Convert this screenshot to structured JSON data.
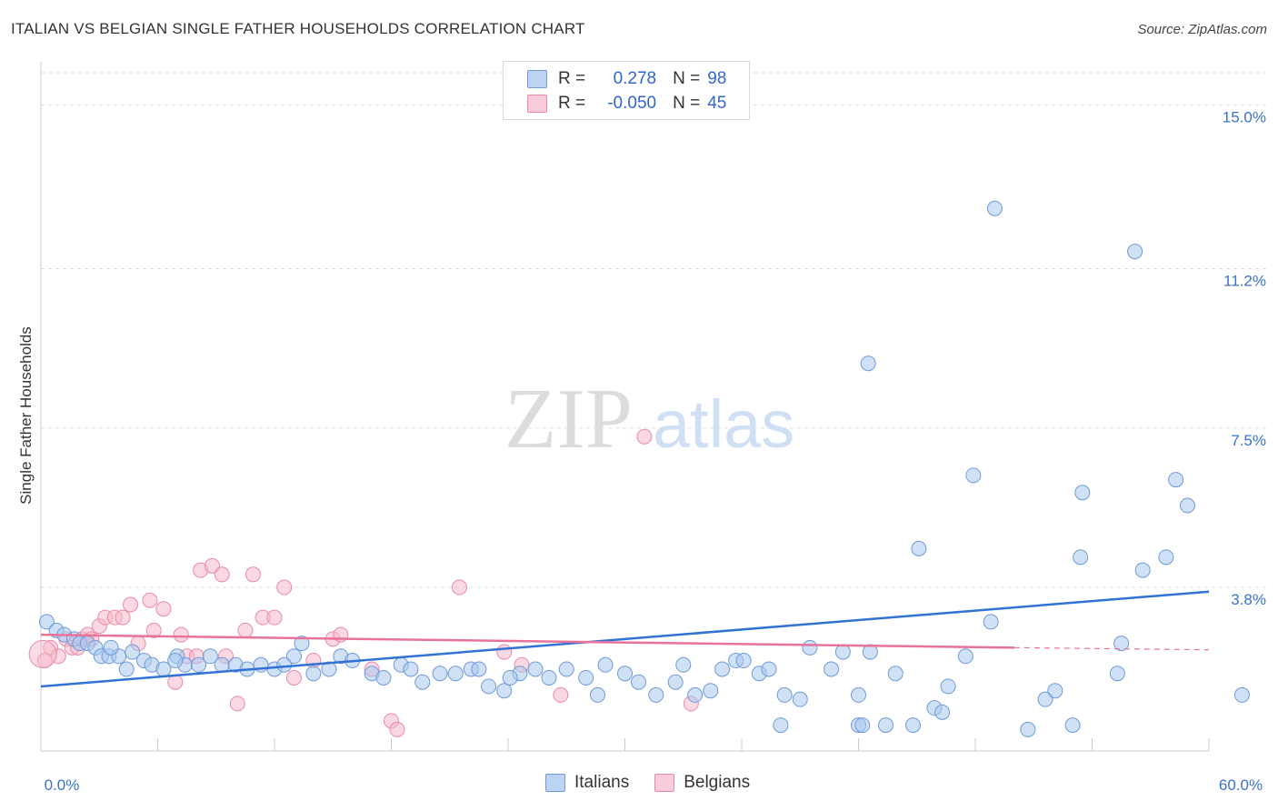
{
  "title": "ITALIAN VS BELGIAN SINGLE FATHER HOUSEHOLDS CORRELATION CHART",
  "source": "Source: ZipAtlas.com",
  "watermark": {
    "zip": "ZIP",
    "atlas": "atlas"
  },
  "legend": {
    "rows": [
      {
        "r_label": "R =",
        "r_value": "0.278",
        "n_label": "N =",
        "n_value": "98"
      },
      {
        "r_label": "R =",
        "r_value": "-0.050",
        "n_label": "N =",
        "n_value": "45"
      }
    ]
  },
  "colors": {
    "italians_fill": "#a9c8ee",
    "italians_stroke": "#6f9bd6",
    "italians_line": "#3272d2",
    "belgians_fill": "#f6b9cb",
    "belgians_stroke": "#e88aa7",
    "belgians_line": "#e8739a",
    "tick_label": "#3a72c8",
    "grid": "#dddddd"
  },
  "chart_data": {
    "type": "scatter",
    "title": "ITALIAN VS BELGIAN SINGLE FATHER HOUSEHOLDS CORRELATION CHART",
    "xlabel": "",
    "ylabel": "Single Father Households",
    "xlim": [
      0,
      60
    ],
    "ylim": [
      0,
      15.75
    ],
    "x_tick_labels": [
      "0.0%",
      "60.0%"
    ],
    "y_ticks": [
      {
        "value": 3.8,
        "label": "3.8%"
      },
      {
        "value": 7.5,
        "label": "7.5%"
      },
      {
        "value": 11.2,
        "label": "11.2%"
      },
      {
        "value": 15.0,
        "label": "15.0%"
      }
    ],
    "series": [
      {
        "name": "Italians",
        "R": 0.278,
        "N": 98,
        "trend": {
          "x0": 0,
          "y0": 1.5,
          "x1": 60,
          "y1": 3.7
        },
        "points": [
          [
            0.3,
            3.0
          ],
          [
            0.8,
            2.8
          ],
          [
            1.2,
            2.7
          ],
          [
            1.7,
            2.6
          ],
          [
            2.0,
            2.5
          ],
          [
            2.4,
            2.5
          ],
          [
            2.8,
            2.4
          ],
          [
            3.1,
            2.2
          ],
          [
            3.5,
            2.2
          ],
          [
            4.0,
            2.2
          ],
          [
            4.4,
            1.9
          ],
          [
            4.7,
            2.3
          ],
          [
            5.3,
            2.1
          ],
          [
            5.7,
            2.0
          ],
          [
            6.3,
            1.9
          ],
          [
            7.0,
            2.2
          ],
          [
            7.4,
            2.0
          ],
          [
            8.1,
            2.0
          ],
          [
            8.7,
            2.2
          ],
          [
            9.3,
            2.0
          ],
          [
            10.0,
            2.0
          ],
          [
            10.6,
            1.9
          ],
          [
            11.3,
            2.0
          ],
          [
            12.0,
            1.9
          ],
          [
            13.0,
            2.2
          ],
          [
            13.4,
            2.5
          ],
          [
            14.0,
            1.8
          ],
          [
            14.8,
            1.9
          ],
          [
            15.4,
            2.2
          ],
          [
            16.0,
            2.1
          ],
          [
            17.0,
            1.8
          ],
          [
            17.6,
            1.7
          ],
          [
            18.5,
            2.0
          ],
          [
            19.6,
            1.6
          ],
          [
            20.5,
            1.8
          ],
          [
            21.3,
            1.8
          ],
          [
            22.1,
            1.9
          ],
          [
            22.5,
            1.9
          ],
          [
            23.0,
            1.5
          ],
          [
            23.8,
            1.4
          ],
          [
            24.6,
            1.8
          ],
          [
            25.4,
            1.9
          ],
          [
            26.1,
            1.7
          ],
          [
            27.0,
            1.9
          ],
          [
            28.0,
            1.7
          ],
          [
            29.0,
            2.0
          ],
          [
            30.0,
            1.8
          ],
          [
            30.7,
            1.6
          ],
          [
            31.6,
            1.3
          ],
          [
            32.6,
            1.6
          ],
          [
            33.0,
            2.0
          ],
          [
            33.6,
            1.3
          ],
          [
            34.4,
            1.4
          ],
          [
            35.0,
            1.9
          ],
          [
            35.7,
            2.1
          ],
          [
            36.1,
            2.1
          ],
          [
            36.9,
            1.8
          ],
          [
            37.4,
            1.9
          ],
          [
            38.0,
            0.6
          ],
          [
            38.2,
            1.3
          ],
          [
            39.0,
            1.2
          ],
          [
            39.5,
            2.4
          ],
          [
            40.6,
            1.9
          ],
          [
            41.2,
            2.3
          ],
          [
            42.0,
            0.6
          ],
          [
            42.0,
            1.3
          ],
          [
            42.6,
            2.3
          ],
          [
            43.4,
            0.6
          ],
          [
            43.9,
            1.8
          ],
          [
            44.8,
            0.6
          ],
          [
            45.1,
            4.7
          ],
          [
            45.9,
            1.0
          ],
          [
            46.6,
            1.5
          ],
          [
            47.5,
            2.2
          ],
          [
            47.9,
            6.4
          ],
          [
            48.8,
            3.0
          ],
          [
            42.5,
            9.0
          ],
          [
            49.0,
            12.6
          ],
          [
            50.7,
            0.5
          ],
          [
            51.6,
            1.2
          ],
          [
            52.1,
            1.4
          ],
          [
            53.0,
            0.6
          ],
          [
            53.5,
            6.0
          ],
          [
            53.4,
            4.5
          ],
          [
            56.2,
            11.6
          ],
          [
            56.6,
            4.2
          ],
          [
            57.8,
            4.5
          ],
          [
            58.3,
            6.3
          ],
          [
            58.9,
            5.7
          ],
          [
            61.7,
            1.3
          ],
          [
            55.5,
            2.5
          ],
          [
            55.3,
            1.8
          ],
          [
            42.2,
            0.6
          ],
          [
            46.3,
            0.9
          ],
          [
            28.6,
            1.3
          ],
          [
            24.1,
            1.7
          ],
          [
            19.0,
            1.9
          ],
          [
            12.5,
            2.0
          ],
          [
            6.9,
            2.1
          ],
          [
            3.6,
            2.4
          ]
        ]
      },
      {
        "name": "Belgians",
        "R": -0.05,
        "N": 45,
        "trend": {
          "x0": 0,
          "y0": 2.7,
          "x1": 50,
          "y1": 2.4,
          "dashed_to_x": 60,
          "dashed_to_y": 2.35
        },
        "points": [
          [
            0.2,
            2.1
          ],
          [
            0.5,
            2.4
          ],
          [
            0.9,
            2.2
          ],
          [
            1.3,
            2.6
          ],
          [
            1.6,
            2.4
          ],
          [
            1.9,
            2.4
          ],
          [
            2.1,
            2.6
          ],
          [
            2.4,
            2.7
          ],
          [
            2.6,
            2.6
          ],
          [
            3.0,
            2.9
          ],
          [
            3.3,
            3.1
          ],
          [
            3.8,
            3.1
          ],
          [
            4.2,
            3.1
          ],
          [
            4.6,
            3.4
          ],
          [
            5.0,
            2.5
          ],
          [
            5.6,
            3.5
          ],
          [
            5.8,
            2.8
          ],
          [
            6.3,
            3.3
          ],
          [
            6.9,
            1.6
          ],
          [
            7.2,
            2.7
          ],
          [
            7.5,
            2.2
          ],
          [
            8.0,
            2.2
          ],
          [
            8.2,
            4.2
          ],
          [
            8.8,
            4.3
          ],
          [
            9.3,
            4.1
          ],
          [
            9.5,
            2.2
          ],
          [
            10.1,
            1.1
          ],
          [
            10.5,
            2.8
          ],
          [
            10.9,
            4.1
          ],
          [
            11.4,
            3.1
          ],
          [
            12.0,
            3.1
          ],
          [
            12.5,
            3.8
          ],
          [
            13.0,
            1.7
          ],
          [
            14.0,
            2.1
          ],
          [
            15.0,
            2.6
          ],
          [
            15.4,
            2.7
          ],
          [
            17.0,
            1.9
          ],
          [
            18.0,
            0.7
          ],
          [
            18.3,
            0.5
          ],
          [
            21.5,
            3.8
          ],
          [
            23.8,
            2.3
          ],
          [
            24.7,
            2.0
          ],
          [
            26.7,
            1.3
          ],
          [
            31.0,
            7.3
          ],
          [
            33.4,
            1.1
          ]
        ]
      }
    ]
  }
}
